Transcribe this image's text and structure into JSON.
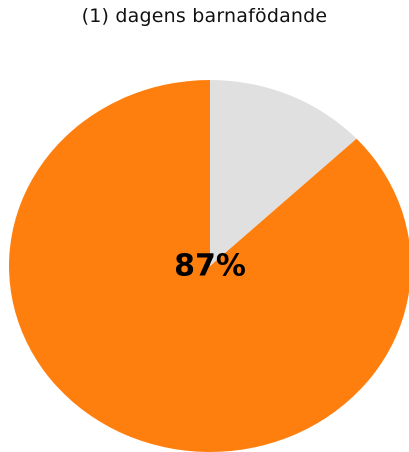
{
  "chart_data": {
    "type": "pie",
    "title": "(1) dagens barnafödande",
    "slices": [
      {
        "value": 87,
        "color": "#ff7f0e"
      },
      {
        "value": 13,
        "color": "#e0e0e0"
      }
    ],
    "center_label": "87%",
    "start": "12 o'clock",
    "direction": "counterclockwise"
  }
}
